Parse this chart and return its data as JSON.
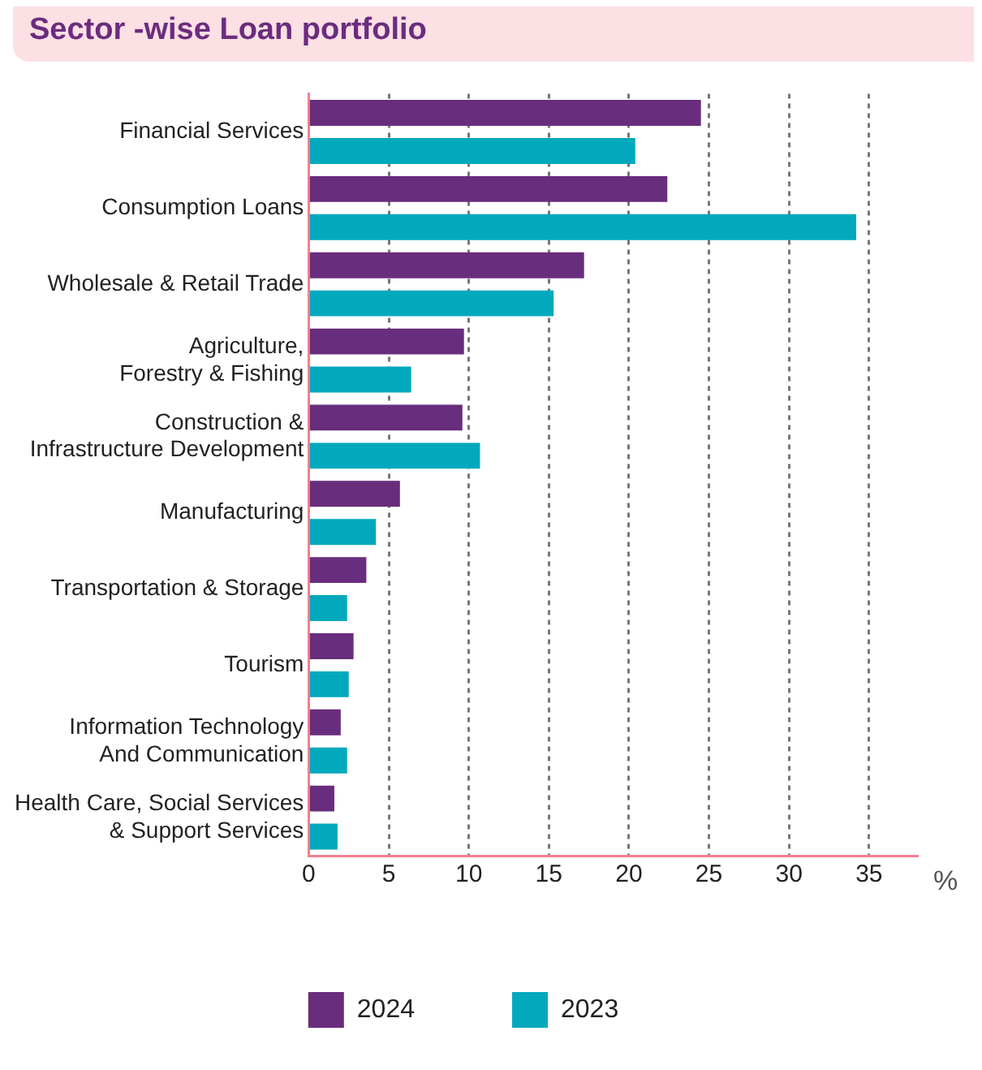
{
  "chart_data": {
    "type": "bar",
    "orientation": "horizontal",
    "title": "Sector -wise Loan portfolio",
    "xlabel": "%",
    "categories": [
      "Financial Services",
      "Consumption Loans",
      "Wholesale & Retail Trade",
      "Agriculture,\nForestry & Fishing",
      "Construction &\nInfrastructure Development",
      "Manufacturing",
      "Transportation & Storage",
      "Tourism",
      "Information Technology\nAnd Communication",
      "Health Care, Social Services\n& Support Services"
    ],
    "series": [
      {
        "name": "2024",
        "color": "#682d7c",
        "values": [
          24.5,
          22.4,
          17.2,
          9.7,
          9.6,
          5.7,
          3.6,
          2.8,
          2.0,
          1.6
        ]
      },
      {
        "name": "2023",
        "color": "#02a9bd",
        "values": [
          20.4,
          34.2,
          15.3,
          6.4,
          10.7,
          4.2,
          2.4,
          2.5,
          2.4,
          1.8
        ]
      }
    ],
    "xlim": [
      0,
      38
    ],
    "xticks": [
      0,
      5,
      10,
      15,
      20,
      25,
      30,
      35
    ],
    "grid": "x",
    "legend": "bottom"
  }
}
